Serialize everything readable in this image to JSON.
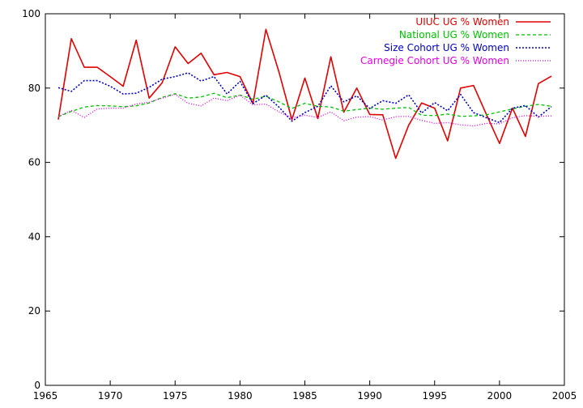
{
  "chart_data": {
    "type": "line",
    "title": "",
    "xlabel": "",
    "ylabel": "",
    "xlim": [
      1965,
      2005
    ],
    "ylim": [
      0,
      100
    ],
    "x_ticks": [
      1965,
      1970,
      1975,
      1980,
      1985,
      1990,
      1995,
      2000,
      2005
    ],
    "y_ticks": [
      0,
      20,
      40,
      60,
      80,
      100
    ],
    "grid": false,
    "legend_position": "top-right",
    "x": [
      1966,
      1967,
      1968,
      1969,
      1970,
      1971,
      1972,
      1973,
      1974,
      1975,
      1976,
      1977,
      1978,
      1979,
      1980,
      1981,
      1982,
      1983,
      1984,
      1985,
      1986,
      1987,
      1988,
      1989,
      1990,
      1991,
      1992,
      1993,
      1994,
      1995,
      1996,
      1997,
      1998,
      1999,
      2000,
      2001,
      2002,
      2003,
      2004
    ],
    "series": [
      {
        "name": "UIUC UG % Women",
        "color": "#e00000",
        "dash": "solid",
        "values": [
          71.5,
          93.3,
          85.6,
          85.6,
          83.1,
          80.5,
          92.9,
          77.3,
          81.4,
          91.1,
          86.6,
          89.4,
          83.6,
          84.2,
          83.1,
          75.8,
          95.8,
          84.4,
          71.5,
          82.7,
          71.8,
          88.4,
          73.5,
          80.0,
          72.9,
          72.8,
          61.1,
          70.0,
          76.0,
          74.6,
          65.8,
          80.0,
          80.7,
          72.8,
          65.1,
          74.6,
          67.0,
          81.2,
          83.2
        ]
      },
      {
        "name": "National UG % Women",
        "color": "#00c000",
        "dash": "dashed",
        "values": [
          72.3,
          73.7,
          74.9,
          75.3,
          75.2,
          75.0,
          75.2,
          76.0,
          77.5,
          78.5,
          77.3,
          77.6,
          78.6,
          77.4,
          78.1,
          77.0,
          77.8,
          76.3,
          74.5,
          75.9,
          75.1,
          74.9,
          73.8,
          74.2,
          74.6,
          74.3,
          74.6,
          74.8,
          72.7,
          72.6,
          73.0,
          72.4,
          72.5,
          72.8,
          73.6,
          74.4,
          75.1,
          75.6,
          75.1
        ]
      },
      {
        "name": "Size Cohort UG % Women",
        "color": "#0000c0",
        "dash": "dotted",
        "values": [
          80.1,
          79.1,
          82.0,
          82.0,
          80.5,
          78.4,
          78.6,
          80.2,
          82.4,
          83.1,
          84.1,
          81.9,
          83.1,
          78.4,
          81.8,
          75.8,
          78.1,
          74.9,
          71.1,
          73.4,
          75.1,
          80.6,
          76.3,
          77.9,
          74.5,
          76.6,
          75.9,
          78.2,
          73.3,
          76.1,
          73.9,
          78.3,
          73.4,
          72.0,
          70.7,
          74.6,
          75.3,
          72.2,
          75.0
        ]
      },
      {
        "name": "Carnegie Cohort UG % Women",
        "color": "#e000e0",
        "dash": "dotted-fine",
        "values": [
          72.3,
          74.0,
          72.1,
          74.4,
          74.6,
          74.6,
          75.7,
          76.2,
          77.3,
          78.3,
          75.9,
          75.2,
          77.3,
          76.6,
          78.1,
          75.5,
          75.7,
          73.6,
          72.0,
          72.7,
          72.1,
          73.6,
          71.2,
          72.2,
          72.3,
          71.4,
          72.3,
          72.4,
          71.3,
          70.5,
          70.7,
          70.1,
          69.8,
          70.5,
          70.4,
          72.0,
          72.6,
          72.4,
          72.5
        ]
      }
    ]
  }
}
